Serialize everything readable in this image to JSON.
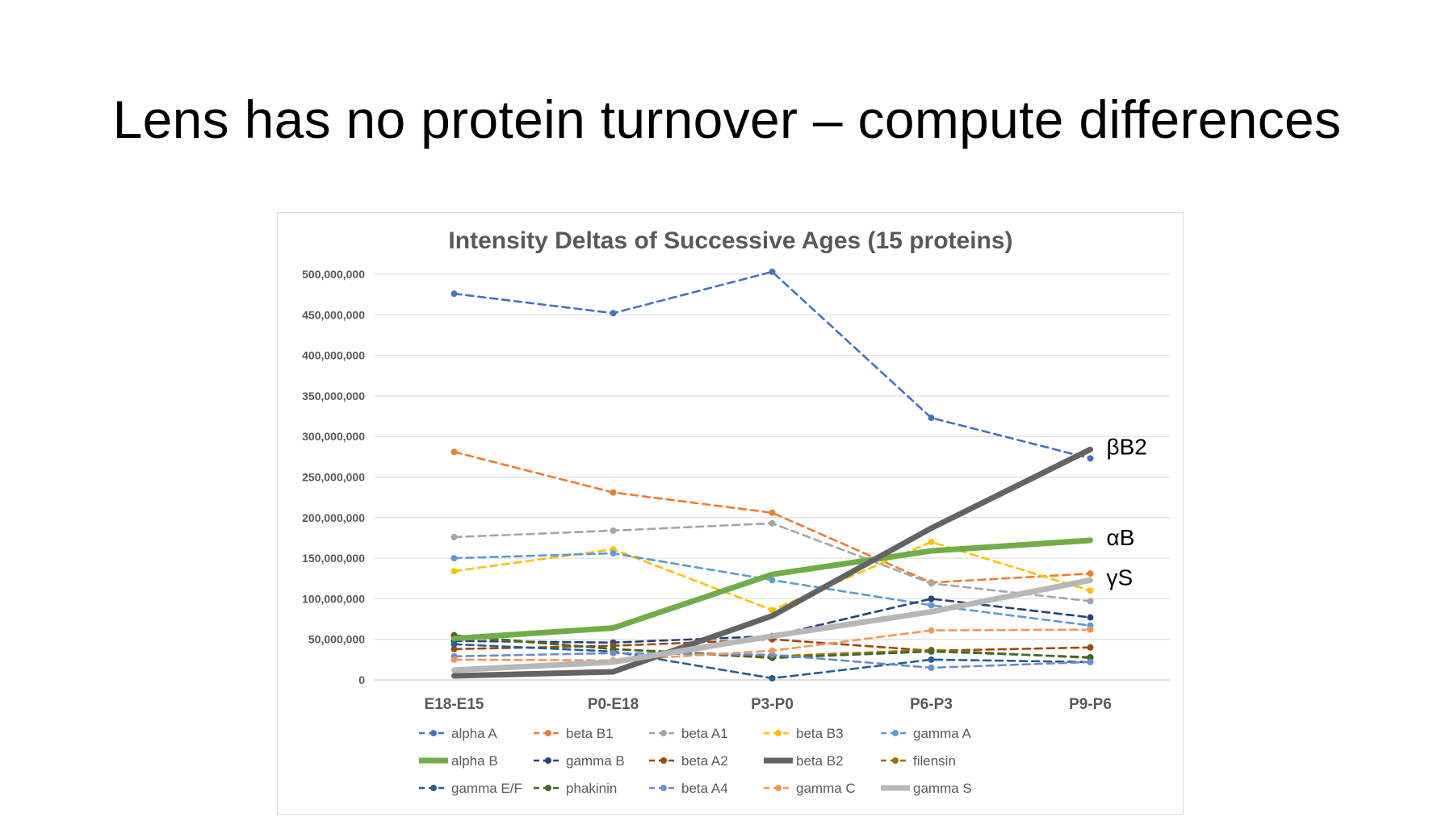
{
  "slide": {
    "title": "Lens has no protein turnover – compute differences"
  },
  "chart_data": {
    "type": "line",
    "title": "Intensity Deltas of Successive Ages (15 proteins)",
    "categories": [
      "E18-E15",
      "P0-E18",
      "P3-P0",
      "P6-P3",
      "P9-P6"
    ],
    "ylim": [
      0,
      500000000
    ],
    "yticks": [
      0,
      50000000,
      100000000,
      150000000,
      200000000,
      250000000,
      300000000,
      350000000,
      400000000,
      450000000,
      500000000
    ],
    "ytick_labels": [
      "0",
      "50,000,000",
      "100,000,000",
      "150,000,000",
      "200,000,000",
      "250,000,000",
      "300,000,000",
      "350,000,000",
      "400,000,000",
      "450,000,000",
      "500,000,000"
    ],
    "grid": true,
    "legend_position": "bottom",
    "series": [
      {
        "name": "alpha A",
        "color": "#4472C4",
        "style": "dashed",
        "values": [
          476000000,
          452000000,
          503000000,
          323000000,
          273000000
        ]
      },
      {
        "name": "beta B1",
        "color": "#ED7D31",
        "style": "dashed",
        "values": [
          281000000,
          231000000,
          206000000,
          120000000,
          131000000
        ]
      },
      {
        "name": "beta A1",
        "color": "#A5A5A5",
        "style": "dashed",
        "values": [
          176000000,
          184000000,
          193000000,
          119000000,
          97000000
        ]
      },
      {
        "name": "beta B3",
        "color": "#FFC000",
        "style": "dashed",
        "values": [
          134000000,
          161000000,
          86000000,
          170000000,
          110000000
        ]
      },
      {
        "name": "gamma A",
        "color": "#5B9BD5",
        "style": "dashed",
        "values": [
          150000000,
          156000000,
          123000000,
          92000000,
          67000000
        ]
      },
      {
        "name": "alpha B",
        "color": "#70AD47",
        "style": "solid-thick",
        "values": [
          51000000,
          64000000,
          130000000,
          159000000,
          172000000
        ]
      },
      {
        "name": "gamma B",
        "color": "#264478",
        "style": "dashed",
        "values": [
          48000000,
          46000000,
          54000000,
          100000000,
          77000000
        ]
      },
      {
        "name": "beta A2",
        "color": "#9E480E",
        "style": "dashed",
        "values": [
          38000000,
          42000000,
          50000000,
          36000000,
          40000000
        ]
      },
      {
        "name": "beta B2",
        "color": "#636363",
        "style": "solid-thick",
        "values": [
          5000000,
          10000000,
          79000000,
          187000000,
          284000000
        ]
      },
      {
        "name": "filensin",
        "color": "#997300",
        "style": "dashed",
        "values": [
          54000000,
          38000000,
          29000000,
          37000000,
          27000000
        ]
      },
      {
        "name": "gamma E/F",
        "color": "#255E91",
        "style": "dashed",
        "values": [
          44000000,
          35000000,
          2000000,
          25000000,
          22000000
        ]
      },
      {
        "name": "phakinin",
        "color": "#43682B",
        "style": "dashed",
        "values": [
          55000000,
          38000000,
          27000000,
          35000000,
          28000000
        ]
      },
      {
        "name": "beta A4",
        "color": "#698ED0",
        "style": "dashed",
        "values": [
          29000000,
          33000000,
          31000000,
          15000000,
          22000000
        ]
      },
      {
        "name": "gamma C",
        "color": "#F1975A",
        "style": "dashed",
        "values": [
          25000000,
          24000000,
          36000000,
          61000000,
          62000000
        ]
      },
      {
        "name": "gamma S",
        "color": "#B7B7B7",
        "style": "solid-thick",
        "values": [
          12000000,
          22000000,
          54000000,
          84000000,
          123000000
        ]
      }
    ],
    "annotations": [
      {
        "text": "βB2",
        "series": "beta B2"
      },
      {
        "text": "αB",
        "series": "alpha B"
      },
      {
        "text": "γS",
        "series": "gamma S"
      }
    ]
  }
}
